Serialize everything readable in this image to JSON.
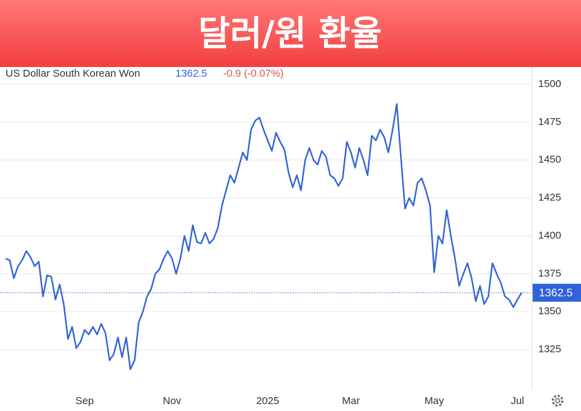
{
  "chart_data": {
    "type": "line",
    "title": "달러/원 환율",
    "series_name": "US Dollar South Korean Won",
    "change": "-0.9 (-0.07%)",
    "color": "#3063d8",
    "categories": [
      null,
      null,
      null,
      null,
      null,
      null,
      null,
      null,
      null,
      null,
      null,
      null,
      null,
      null,
      null,
      null,
      null,
      null,
      null,
      "Sep",
      null,
      null,
      null,
      null,
      null,
      null,
      null,
      null,
      null,
      null,
      null,
      null,
      null,
      null,
      null,
      null,
      null,
      null,
      null,
      null,
      "Nov",
      null,
      null,
      null,
      null,
      null,
      null,
      null,
      null,
      null,
      null,
      null,
      null,
      null,
      null,
      null,
      null,
      null,
      null,
      null,
      null,
      null,
      null,
      "2025",
      null,
      null,
      null,
      null,
      null,
      null,
      null,
      null,
      null,
      null,
      null,
      null,
      null,
      null,
      null,
      null,
      null,
      null,
      null,
      "Mar",
      null,
      null,
      null,
      null,
      null,
      null,
      null,
      null,
      null,
      null,
      null,
      null,
      null,
      null,
      null,
      null,
      null,
      null,
      null,
      "May",
      null,
      null,
      null,
      null,
      null,
      null,
      null,
      null,
      null,
      null,
      null,
      null,
      null,
      null,
      null,
      null,
      null,
      null,
      null,
      "Jul",
      null
    ],
    "values": [
      1385,
      1384,
      1372,
      1380,
      1384,
      1390,
      1386,
      1380,
      1383,
      1360,
      1374,
      1373,
      1358,
      1368,
      1355,
      1332,
      1340,
      1326,
      1330,
      1338,
      1335,
      1340,
      1335,
      1342,
      1336,
      1318,
      1322,
      1333,
      1320,
      1333,
      1312,
      1318,
      1343,
      1350,
      1360,
      1365,
      1375,
      1378,
      1385,
      1390,
      1385,
      1375,
      1385,
      1400,
      1390,
      1407,
      1396,
      1395,
      1402,
      1395,
      1398,
      1405,
      1420,
      1430,
      1440,
      1435,
      1445,
      1455,
      1450,
      1470,
      1476,
      1478,
      1470,
      1463,
      1456,
      1468,
      1462,
      1457,
      1442,
      1432,
      1440,
      1430,
      1450,
      1458,
      1450,
      1447,
      1456,
      1452,
      1440,
      1438,
      1433,
      1438,
      1462,
      1455,
      1445,
      1458,
      1450,
      1440,
      1466,
      1463,
      1470,
      1465,
      1455,
      1470,
      1487,
      1452,
      1418,
      1425,
      1420,
      1435,
      1438,
      1430,
      1420,
      1376,
      1400,
      1395,
      1417,
      1400,
      1385,
      1367,
      1375,
      1382,
      1372,
      1357,
      1367,
      1355,
      1360,
      1382,
      1375,
      1369,
      1360,
      1358,
      1353,
      1358,
      1362.5
    ],
    "ylim": [
      1300,
      1510
    ],
    "yticks": [
      1325,
      1350,
      1375,
      1400,
      1425,
      1450,
      1475,
      1500
    ],
    "grid": true
  }
}
